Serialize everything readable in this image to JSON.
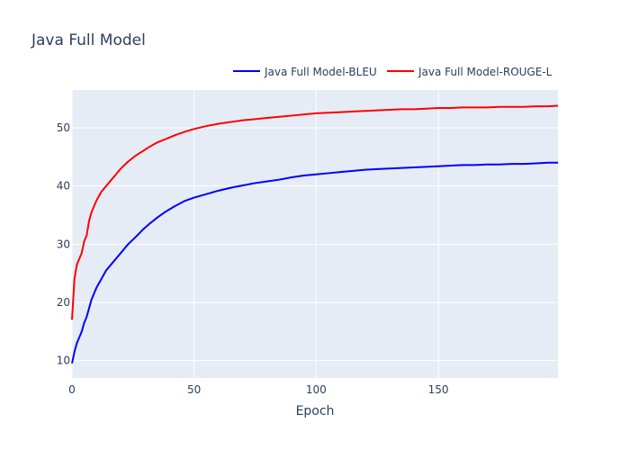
{
  "chart_data": {
    "type": "line",
    "title": "Java Full Model",
    "xlabel": "Epoch",
    "ylabel": "",
    "xlim": [
      0,
      199
    ],
    "ylim": [
      7,
      56.5
    ],
    "x_ticks": [
      0,
      50,
      100,
      150
    ],
    "y_ticks": [
      10,
      20,
      30,
      40,
      50
    ],
    "grid": true,
    "legend_position": "top-right",
    "background_color": "#e5ecf6",
    "series": [
      {
        "name": "Java Full Model-BLEU",
        "color": "#0000ff",
        "x": [
          0,
          1,
          2,
          3,
          4,
          5,
          6,
          7,
          8,
          9,
          10,
          12,
          14,
          16,
          18,
          20,
          23,
          26,
          29,
          32,
          35,
          38,
          42,
          46,
          50,
          55,
          60,
          65,
          70,
          75,
          80,
          85,
          90,
          95,
          100,
          105,
          110,
          115,
          120,
          125,
          130,
          135,
          140,
          145,
          150,
          155,
          160,
          165,
          170,
          175,
          180,
          185,
          190,
          195,
          199
        ],
        "values": [
          9.5,
          11.5,
          13,
          14,
          15,
          16.5,
          17.5,
          19,
          20.5,
          21.5,
          22.5,
          24,
          25.5,
          26.5,
          27.5,
          28.5,
          30,
          31.2,
          32.5,
          33.6,
          34.6,
          35.5,
          36.5,
          37.4,
          38,
          38.6,
          39.2,
          39.7,
          40.1,
          40.5,
          40.8,
          41.1,
          41.5,
          41.8,
          42,
          42.2,
          42.4,
          42.6,
          42.8,
          42.9,
          43,
          43.1,
          43.2,
          43.3,
          43.4,
          43.5,
          43.6,
          43.6,
          43.7,
          43.7,
          43.8,
          43.8,
          43.9,
          44,
          44
        ]
      },
      {
        "name": "Java Full Model-ROUGE-L",
        "color": "#ff0000",
        "x": [
          0,
          1,
          2,
          3,
          4,
          5,
          6,
          7,
          8,
          9,
          10,
          12,
          14,
          16,
          18,
          20,
          23,
          26,
          29,
          32,
          35,
          38,
          42,
          46,
          50,
          55,
          60,
          65,
          70,
          75,
          80,
          85,
          90,
          95,
          100,
          105,
          110,
          115,
          120,
          125,
          130,
          135,
          140,
          145,
          150,
          155,
          160,
          165,
          170,
          175,
          180,
          185,
          190,
          195,
          199
        ],
        "values": [
          17,
          24,
          26.5,
          27.5,
          28.5,
          30.5,
          31.5,
          34,
          35.5,
          36.5,
          37.5,
          39,
          40,
          41,
          42,
          43,
          44.2,
          45.2,
          46,
          46.8,
          47.5,
          48,
          48.7,
          49.3,
          49.8,
          50.3,
          50.7,
          51,
          51.3,
          51.5,
          51.7,
          51.9,
          52.1,
          52.3,
          52.5,
          52.6,
          52.7,
          52.8,
          52.9,
          53,
          53.1,
          53.2,
          53.2,
          53.3,
          53.4,
          53.4,
          53.5,
          53.5,
          53.5,
          53.6,
          53.6,
          53.6,
          53.7,
          53.7,
          53.8
        ]
      }
    ]
  }
}
